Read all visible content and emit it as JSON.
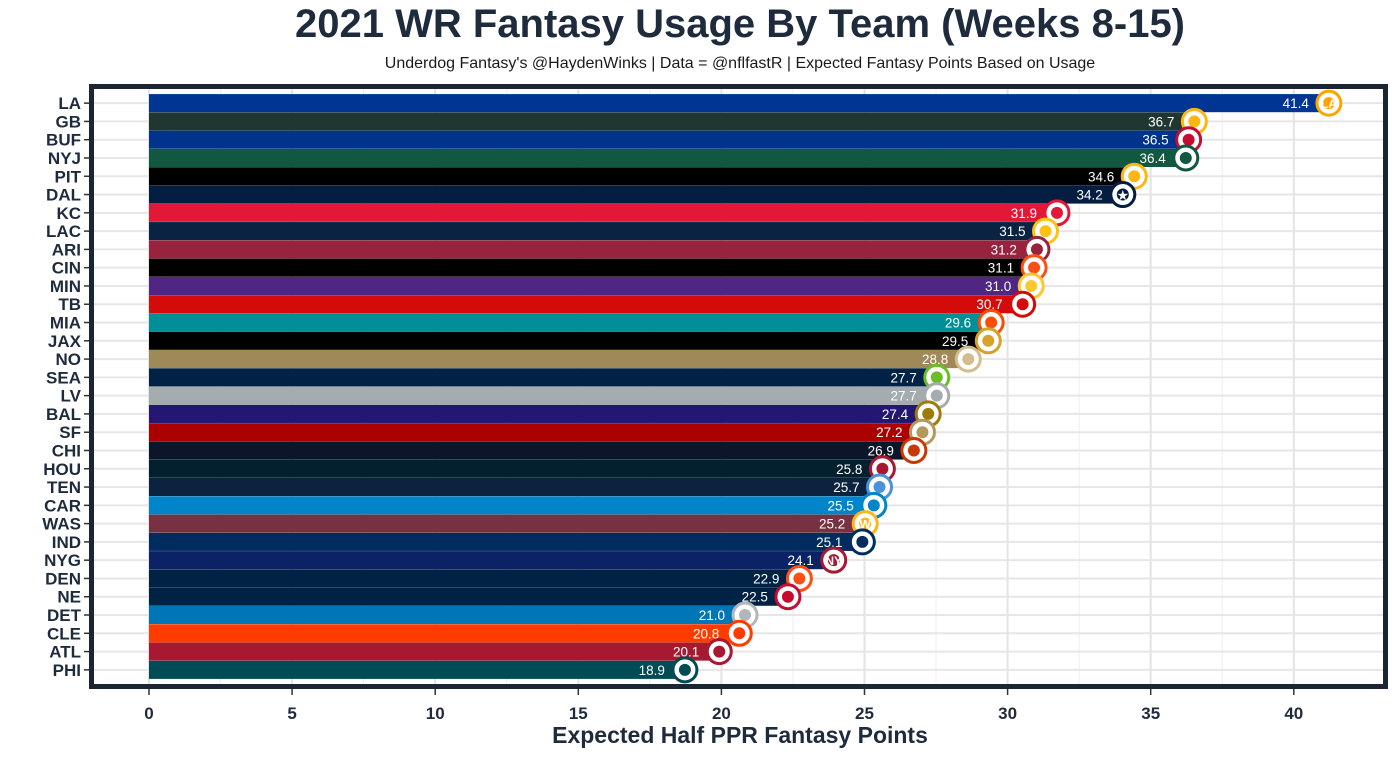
{
  "chart_data": {
    "type": "bar",
    "orientation": "horizontal",
    "title": "2021 WR Fantasy Usage By Team (Weeks 8-15)",
    "subtitle": "Underdog Fantasy's @HaydenWinks | Data = @nflfastR | Expected Fantasy Points Based on Usage",
    "xlabel": "Expected Half PPR Fantasy Points",
    "ylabel": "",
    "xlim": [
      0,
      42.5
    ],
    "xticks": [
      0,
      5,
      10,
      15,
      20,
      25,
      30,
      35,
      40
    ],
    "grid": true,
    "legend": "none",
    "categories": [
      "LA",
      "GB",
      "BUF",
      "NYJ",
      "PIT",
      "DAL",
      "KC",
      "LAC",
      "ARI",
      "CIN",
      "MIN",
      "TB",
      "MIA",
      "JAX",
      "NO",
      "SEA",
      "LV",
      "BAL",
      "SF",
      "CHI",
      "HOU",
      "TEN",
      "CAR",
      "WAS",
      "IND",
      "NYG",
      "DEN",
      "NE",
      "DET",
      "CLE",
      "ATL",
      "PHI"
    ],
    "values": [
      41.4,
      36.7,
      36.5,
      36.4,
      34.6,
      34.2,
      31.9,
      31.5,
      31.2,
      31.1,
      31.0,
      30.7,
      29.6,
      29.5,
      28.8,
      27.7,
      27.7,
      27.4,
      27.2,
      26.9,
      25.8,
      25.7,
      25.5,
      25.2,
      25.1,
      24.1,
      22.9,
      22.5,
      21.0,
      20.8,
      20.1,
      18.9
    ],
    "value_labels": [
      "41.4",
      "36.7",
      "36.5",
      "36.4",
      "34.6",
      "34.2",
      "31.9",
      "31.5",
      "31.2",
      "31.1",
      "31.0",
      "30.7",
      "29.6",
      "29.5",
      "28.8",
      "27.7",
      "27.7",
      "27.4",
      "27.2",
      "26.9",
      "25.8",
      "25.7",
      "25.5",
      "25.2",
      "25.1",
      "24.1",
      "22.9",
      "22.5",
      "21.0",
      "20.8",
      "20.1",
      "18.9"
    ],
    "bar_colors": [
      "#003594",
      "#203731",
      "#00338D",
      "#125740",
      "#000000",
      "#041E42",
      "#E31837",
      "#0A2342",
      "#97233F",
      "#000000",
      "#4F2683",
      "#D50A0A",
      "#008E97",
      "#000000",
      "#9F8958",
      "#002244",
      "#A5ACAF",
      "#241773",
      "#AA0000",
      "#0B162A",
      "#03202F",
      "#0C2340",
      "#0085CA",
      "#773141",
      "#002C5F",
      "#0B2265",
      "#002244",
      "#002244",
      "#0076B6",
      "#FF3C00",
      "#A71930",
      "#004C54"
    ],
    "logo_colors": [
      "#FFA300",
      "#FFB612",
      "#C60C30",
      "#125740",
      "#FFB612",
      "#041E42",
      "#E31837",
      "#FFC20E",
      "#97233F",
      "#FB4F14",
      "#FFC62F",
      "#D50A0A",
      "#FC4C02",
      "#D7A22A",
      "#D3BC8D",
      "#69BE28",
      "#A5ACAF",
      "#9E7C0C",
      "#B3995D",
      "#C83803",
      "#A71930",
      "#4B92DB",
      "#0085CA",
      "#FFB612",
      "#002C5F",
      "#A71930",
      "#FB4F14",
      "#C60C30",
      "#B0B7BC",
      "#FF3C00",
      "#A71930",
      "#004C54"
    ],
    "logo_marks": [
      "LA",
      "",
      "",
      "",
      "",
      "★",
      "",
      "",
      "",
      "",
      "",
      "",
      "",
      "",
      "",
      "",
      "",
      "",
      "",
      "",
      "",
      "",
      "",
      "W",
      "",
      "NY",
      "",
      "",
      "",
      "",
      "",
      ""
    ]
  }
}
